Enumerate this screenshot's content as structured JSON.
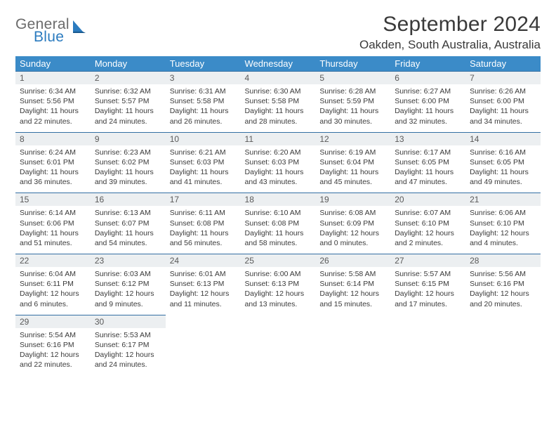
{
  "logo": {
    "general": "General",
    "blue": "Blue"
  },
  "title": "September 2024",
  "location": "Oakden, South Australia, Australia",
  "colors": {
    "header_bg": "#3b8bc8",
    "daynum_bg": "#eceff1",
    "daynum_border": "#346fa3",
    "text": "#3a3a3a",
    "logo_gray": "#6b6b6b",
    "logo_blue": "#2b7bbf"
  },
  "day_names": [
    "Sunday",
    "Monday",
    "Tuesday",
    "Wednesday",
    "Thursday",
    "Friday",
    "Saturday"
  ],
  "weeks": [
    [
      {
        "n": "1",
        "sr": "Sunrise: 6:34 AM",
        "ss": "Sunset: 5:56 PM",
        "dl": "Daylight: 11 hours and 22 minutes."
      },
      {
        "n": "2",
        "sr": "Sunrise: 6:32 AM",
        "ss": "Sunset: 5:57 PM",
        "dl": "Daylight: 11 hours and 24 minutes."
      },
      {
        "n": "3",
        "sr": "Sunrise: 6:31 AM",
        "ss": "Sunset: 5:58 PM",
        "dl": "Daylight: 11 hours and 26 minutes."
      },
      {
        "n": "4",
        "sr": "Sunrise: 6:30 AM",
        "ss": "Sunset: 5:58 PM",
        "dl": "Daylight: 11 hours and 28 minutes."
      },
      {
        "n": "5",
        "sr": "Sunrise: 6:28 AM",
        "ss": "Sunset: 5:59 PM",
        "dl": "Daylight: 11 hours and 30 minutes."
      },
      {
        "n": "6",
        "sr": "Sunrise: 6:27 AM",
        "ss": "Sunset: 6:00 PM",
        "dl": "Daylight: 11 hours and 32 minutes."
      },
      {
        "n": "7",
        "sr": "Sunrise: 6:26 AM",
        "ss": "Sunset: 6:00 PM",
        "dl": "Daylight: 11 hours and 34 minutes."
      }
    ],
    [
      {
        "n": "8",
        "sr": "Sunrise: 6:24 AM",
        "ss": "Sunset: 6:01 PM",
        "dl": "Daylight: 11 hours and 36 minutes."
      },
      {
        "n": "9",
        "sr": "Sunrise: 6:23 AM",
        "ss": "Sunset: 6:02 PM",
        "dl": "Daylight: 11 hours and 39 minutes."
      },
      {
        "n": "10",
        "sr": "Sunrise: 6:21 AM",
        "ss": "Sunset: 6:03 PM",
        "dl": "Daylight: 11 hours and 41 minutes."
      },
      {
        "n": "11",
        "sr": "Sunrise: 6:20 AM",
        "ss": "Sunset: 6:03 PM",
        "dl": "Daylight: 11 hours and 43 minutes."
      },
      {
        "n": "12",
        "sr": "Sunrise: 6:19 AM",
        "ss": "Sunset: 6:04 PM",
        "dl": "Daylight: 11 hours and 45 minutes."
      },
      {
        "n": "13",
        "sr": "Sunrise: 6:17 AM",
        "ss": "Sunset: 6:05 PM",
        "dl": "Daylight: 11 hours and 47 minutes."
      },
      {
        "n": "14",
        "sr": "Sunrise: 6:16 AM",
        "ss": "Sunset: 6:05 PM",
        "dl": "Daylight: 11 hours and 49 minutes."
      }
    ],
    [
      {
        "n": "15",
        "sr": "Sunrise: 6:14 AM",
        "ss": "Sunset: 6:06 PM",
        "dl": "Daylight: 11 hours and 51 minutes."
      },
      {
        "n": "16",
        "sr": "Sunrise: 6:13 AM",
        "ss": "Sunset: 6:07 PM",
        "dl": "Daylight: 11 hours and 54 minutes."
      },
      {
        "n": "17",
        "sr": "Sunrise: 6:11 AM",
        "ss": "Sunset: 6:08 PM",
        "dl": "Daylight: 11 hours and 56 minutes."
      },
      {
        "n": "18",
        "sr": "Sunrise: 6:10 AM",
        "ss": "Sunset: 6:08 PM",
        "dl": "Daylight: 11 hours and 58 minutes."
      },
      {
        "n": "19",
        "sr": "Sunrise: 6:08 AM",
        "ss": "Sunset: 6:09 PM",
        "dl": "Daylight: 12 hours and 0 minutes."
      },
      {
        "n": "20",
        "sr": "Sunrise: 6:07 AM",
        "ss": "Sunset: 6:10 PM",
        "dl": "Daylight: 12 hours and 2 minutes."
      },
      {
        "n": "21",
        "sr": "Sunrise: 6:06 AM",
        "ss": "Sunset: 6:10 PM",
        "dl": "Daylight: 12 hours and 4 minutes."
      }
    ],
    [
      {
        "n": "22",
        "sr": "Sunrise: 6:04 AM",
        "ss": "Sunset: 6:11 PM",
        "dl": "Daylight: 12 hours and 6 minutes."
      },
      {
        "n": "23",
        "sr": "Sunrise: 6:03 AM",
        "ss": "Sunset: 6:12 PM",
        "dl": "Daylight: 12 hours and 9 minutes."
      },
      {
        "n": "24",
        "sr": "Sunrise: 6:01 AM",
        "ss": "Sunset: 6:13 PM",
        "dl": "Daylight: 12 hours and 11 minutes."
      },
      {
        "n": "25",
        "sr": "Sunrise: 6:00 AM",
        "ss": "Sunset: 6:13 PM",
        "dl": "Daylight: 12 hours and 13 minutes."
      },
      {
        "n": "26",
        "sr": "Sunrise: 5:58 AM",
        "ss": "Sunset: 6:14 PM",
        "dl": "Daylight: 12 hours and 15 minutes."
      },
      {
        "n": "27",
        "sr": "Sunrise: 5:57 AM",
        "ss": "Sunset: 6:15 PM",
        "dl": "Daylight: 12 hours and 17 minutes."
      },
      {
        "n": "28",
        "sr": "Sunrise: 5:56 AM",
        "ss": "Sunset: 6:16 PM",
        "dl": "Daylight: 12 hours and 20 minutes."
      }
    ],
    [
      {
        "n": "29",
        "sr": "Sunrise: 5:54 AM",
        "ss": "Sunset: 6:16 PM",
        "dl": "Daylight: 12 hours and 22 minutes."
      },
      {
        "n": "30",
        "sr": "Sunrise: 5:53 AM",
        "ss": "Sunset: 6:17 PM",
        "dl": "Daylight: 12 hours and 24 minutes."
      },
      null,
      null,
      null,
      null,
      null
    ]
  ]
}
